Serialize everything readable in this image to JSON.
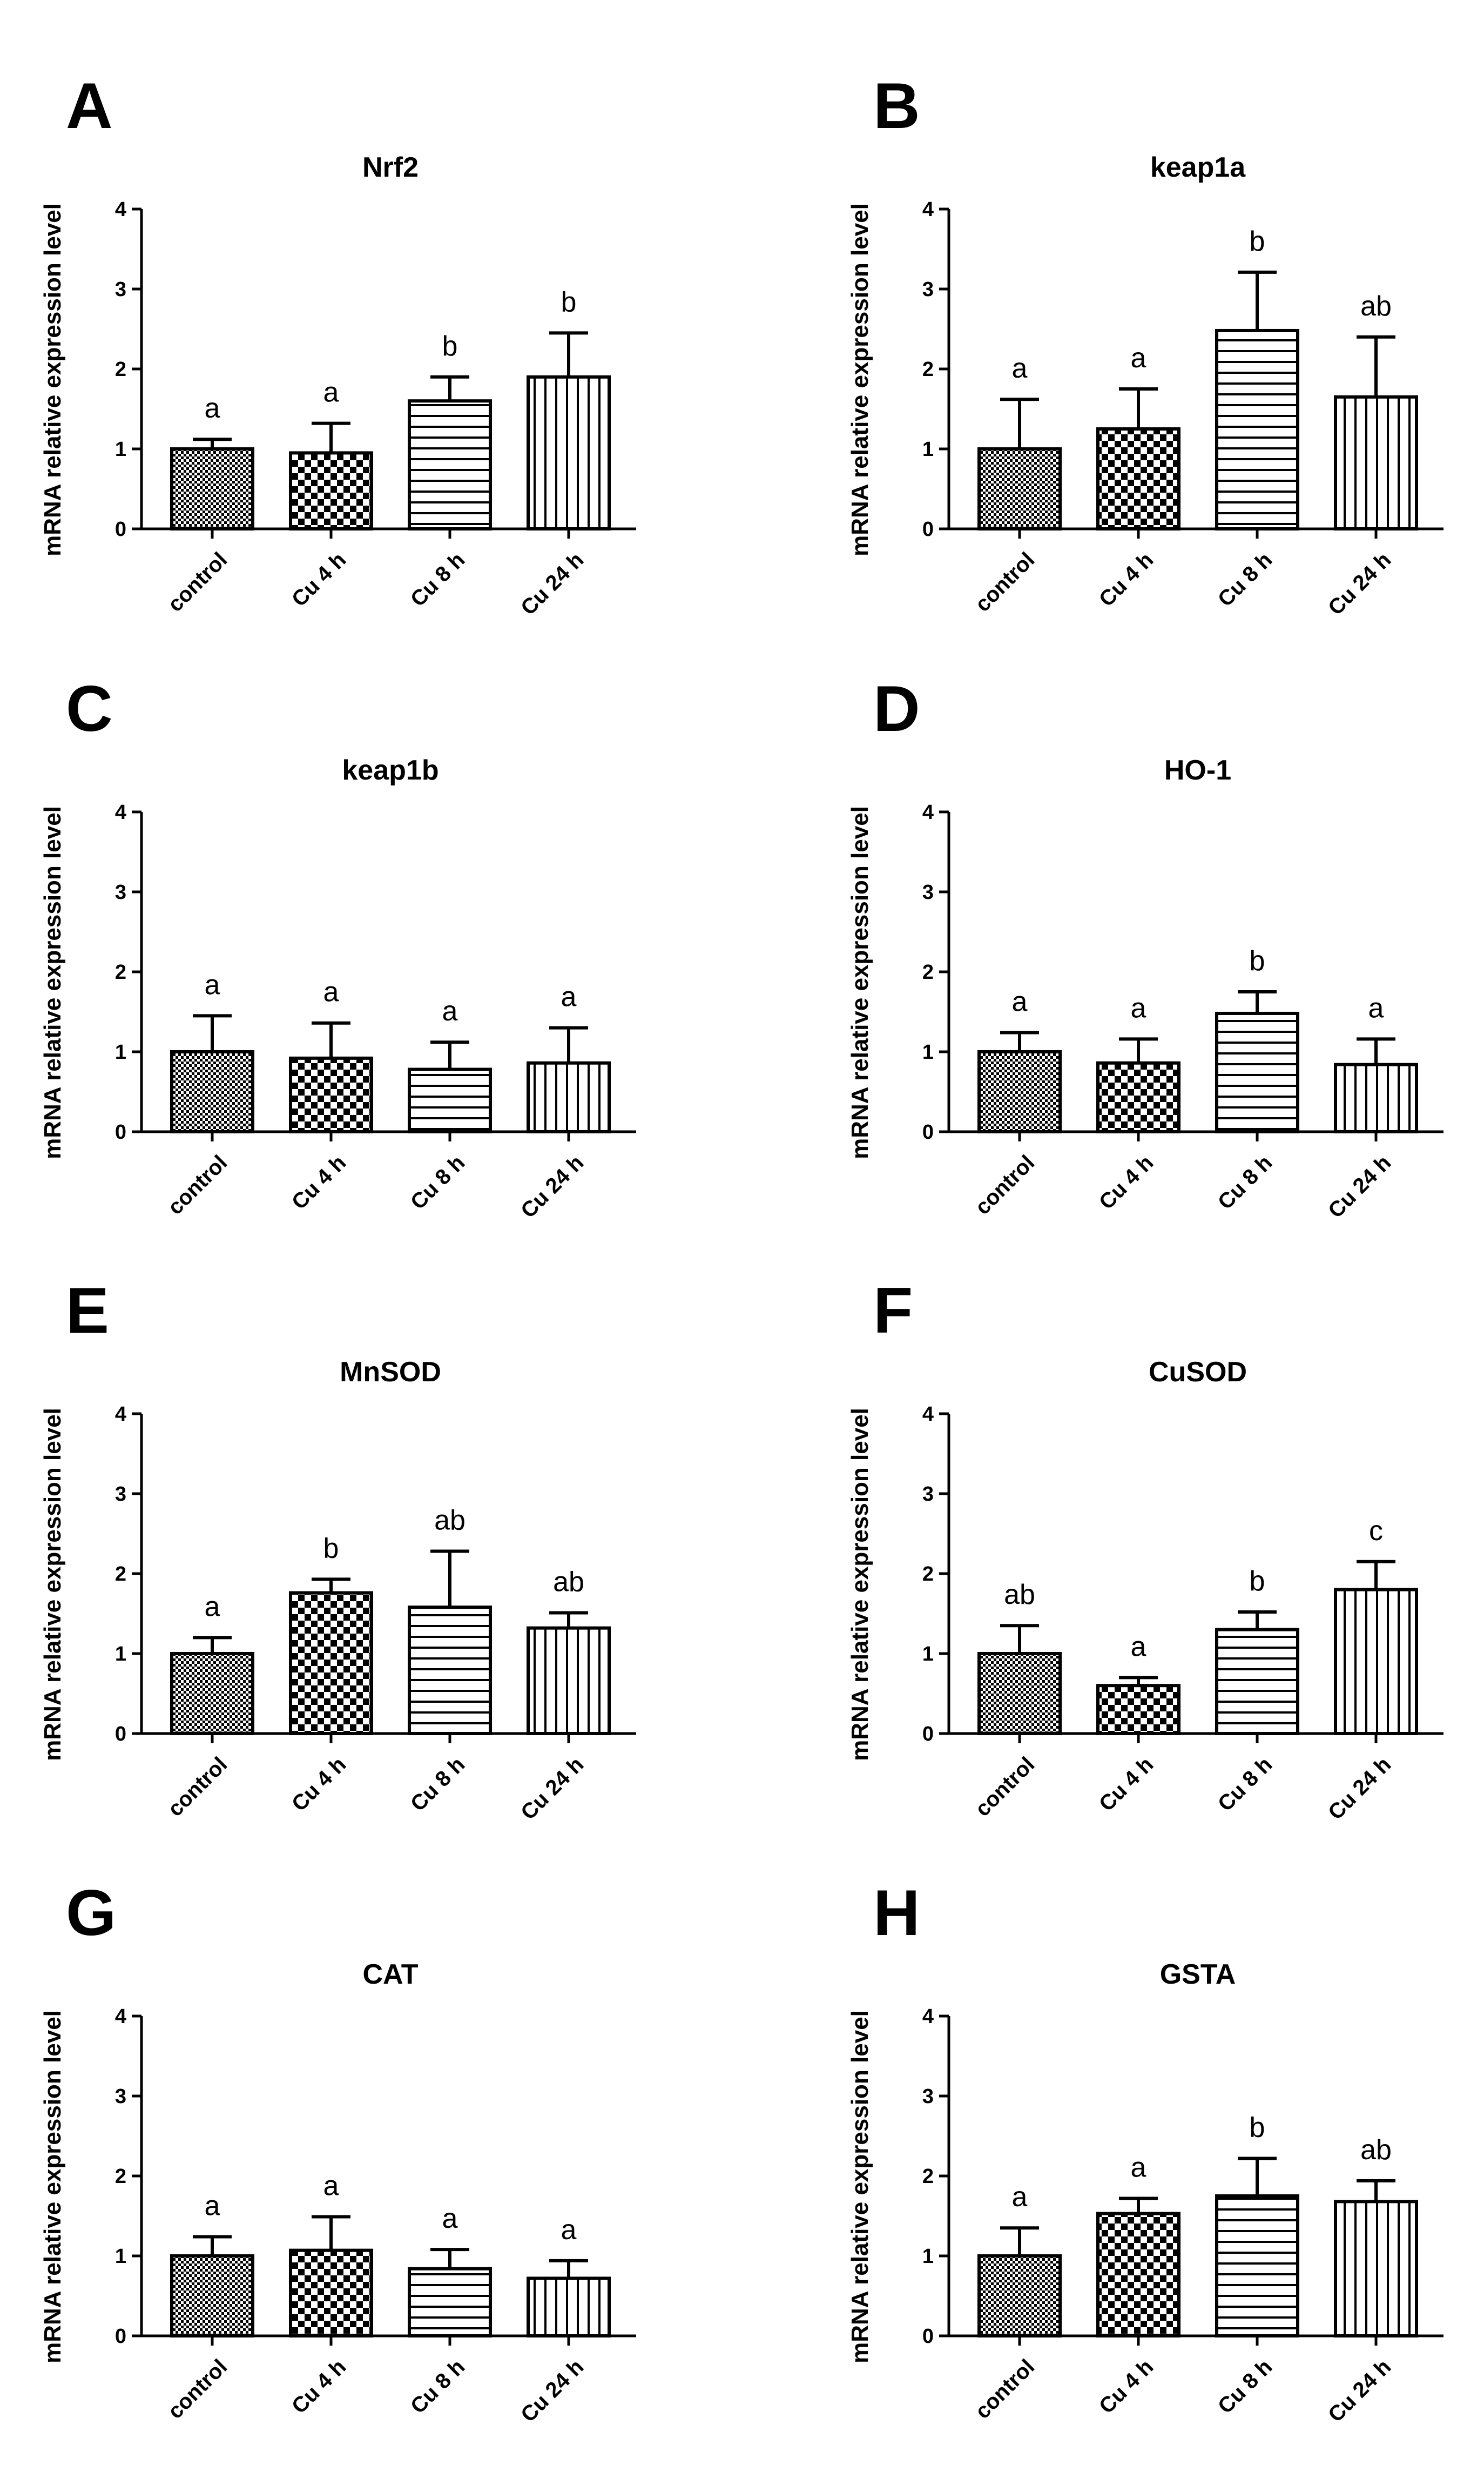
{
  "figure": {
    "panels": [
      {
        "letter": "A"
      },
      {
        "letter": "B"
      },
      {
        "letter": "C"
      },
      {
        "letter": "D"
      },
      {
        "letter": "E"
      },
      {
        "letter": "F"
      },
      {
        "letter": "G"
      },
      {
        "letter": "H"
      }
    ]
  },
  "chart_data": [
    {
      "type": "bar",
      "title": "Nrf2",
      "ylabel": "mRNA relative expression level",
      "xlabel": "",
      "categories": [
        "control",
        "Cu 4 h",
        "Cu 8 h",
        "Cu 24 h"
      ],
      "values": [
        1.0,
        0.95,
        1.6,
        1.9
      ],
      "errors": [
        0.12,
        0.37,
        0.3,
        0.55
      ],
      "significance": [
        "a",
        "a",
        "b",
        "b"
      ],
      "ylim": [
        0,
        4
      ],
      "yticks": [
        "0",
        "1",
        "2",
        "3",
        "4"
      ]
    },
    {
      "type": "bar",
      "title": "keap1a",
      "ylabel": "mRNA relative expression level",
      "xlabel": "",
      "categories": [
        "control",
        "Cu 4 h",
        "Cu 8 h",
        "Cu 24 h"
      ],
      "values": [
        1.0,
        1.25,
        2.48,
        1.65
      ],
      "errors": [
        0.62,
        0.5,
        0.73,
        0.75
      ],
      "significance": [
        "a",
        "a",
        "b",
        "ab"
      ],
      "ylim": [
        0,
        4
      ],
      "yticks": [
        "0",
        "1",
        "2",
        "3",
        "4"
      ]
    },
    {
      "type": "bar",
      "title": "keap1b",
      "ylabel": "mRNA relative expression level",
      "xlabel": "",
      "categories": [
        "control",
        "Cu 4 h",
        "Cu 8 h",
        "Cu 24 h"
      ],
      "values": [
        1.0,
        0.92,
        0.78,
        0.86
      ],
      "errors": [
        0.45,
        0.44,
        0.34,
        0.44
      ],
      "significance": [
        "a",
        "a",
        "a",
        "a"
      ],
      "ylim": [
        0,
        4
      ],
      "yticks": [
        "0",
        "1",
        "2",
        "3",
        "4"
      ]
    },
    {
      "type": "bar",
      "title": "HO-1",
      "ylabel": "mRNA relative expression level",
      "xlabel": "",
      "categories": [
        "control",
        "Cu 4 h",
        "Cu 8 h",
        "Cu 24 h"
      ],
      "values": [
        1.0,
        0.86,
        1.48,
        0.84
      ],
      "errors": [
        0.24,
        0.3,
        0.27,
        0.32
      ],
      "significance": [
        "a",
        "a",
        "b",
        "a"
      ],
      "ylim": [
        0,
        4
      ],
      "yticks": [
        "0",
        "1",
        "2",
        "3",
        "4"
      ]
    },
    {
      "type": "bar",
      "title": "MnSOD",
      "ylabel": "mRNA relative expression level",
      "xlabel": "",
      "categories": [
        "control",
        "Cu 4 h",
        "Cu 8 h",
        "Cu 24 h"
      ],
      "values": [
        1.0,
        1.76,
        1.58,
        1.32
      ],
      "errors": [
        0.2,
        0.17,
        0.7,
        0.19
      ],
      "significance": [
        "a",
        "b",
        "ab",
        "ab"
      ],
      "ylim": [
        0,
        4
      ],
      "yticks": [
        "0",
        "1",
        "2",
        "3",
        "4"
      ]
    },
    {
      "type": "bar",
      "title": "CuSOD",
      "ylabel": "mRNA relative expression level",
      "xlabel": "",
      "categories": [
        "control",
        "Cu 4 h",
        "Cu 8 h",
        "Cu 24 h"
      ],
      "values": [
        1.0,
        0.6,
        1.3,
        1.8
      ],
      "errors": [
        0.35,
        0.1,
        0.22,
        0.35
      ],
      "significance": [
        "ab",
        "a",
        "b",
        "c"
      ],
      "ylim": [
        0,
        4
      ],
      "yticks": [
        "0",
        "1",
        "2",
        "3",
        "4"
      ]
    },
    {
      "type": "bar",
      "title": "CAT",
      "ylabel": "mRNA relative expression level",
      "xlabel": "",
      "categories": [
        "control",
        "Cu 4 h",
        "Cu 8 h",
        "Cu 24 h"
      ],
      "values": [
        1.0,
        1.07,
        0.84,
        0.72
      ],
      "errors": [
        0.24,
        0.42,
        0.24,
        0.22
      ],
      "significance": [
        "a",
        "a",
        "a",
        "a"
      ],
      "ylim": [
        0,
        4
      ],
      "yticks": [
        "0",
        "1",
        "2",
        "3",
        "4"
      ]
    },
    {
      "type": "bar",
      "title": "GSTA",
      "ylabel": "mRNA relative expression level",
      "xlabel": "",
      "categories": [
        "control",
        "Cu 4 h",
        "Cu 8 h",
        "Cu 24 h"
      ],
      "values": [
        1.0,
        1.53,
        1.75,
        1.68
      ],
      "errors": [
        0.35,
        0.19,
        0.47,
        0.26
      ],
      "significance": [
        "a",
        "a",
        "b",
        "ab"
      ],
      "ylim": [
        0,
        4
      ],
      "yticks": [
        "0",
        "1",
        "2",
        "3",
        "4"
      ]
    }
  ]
}
